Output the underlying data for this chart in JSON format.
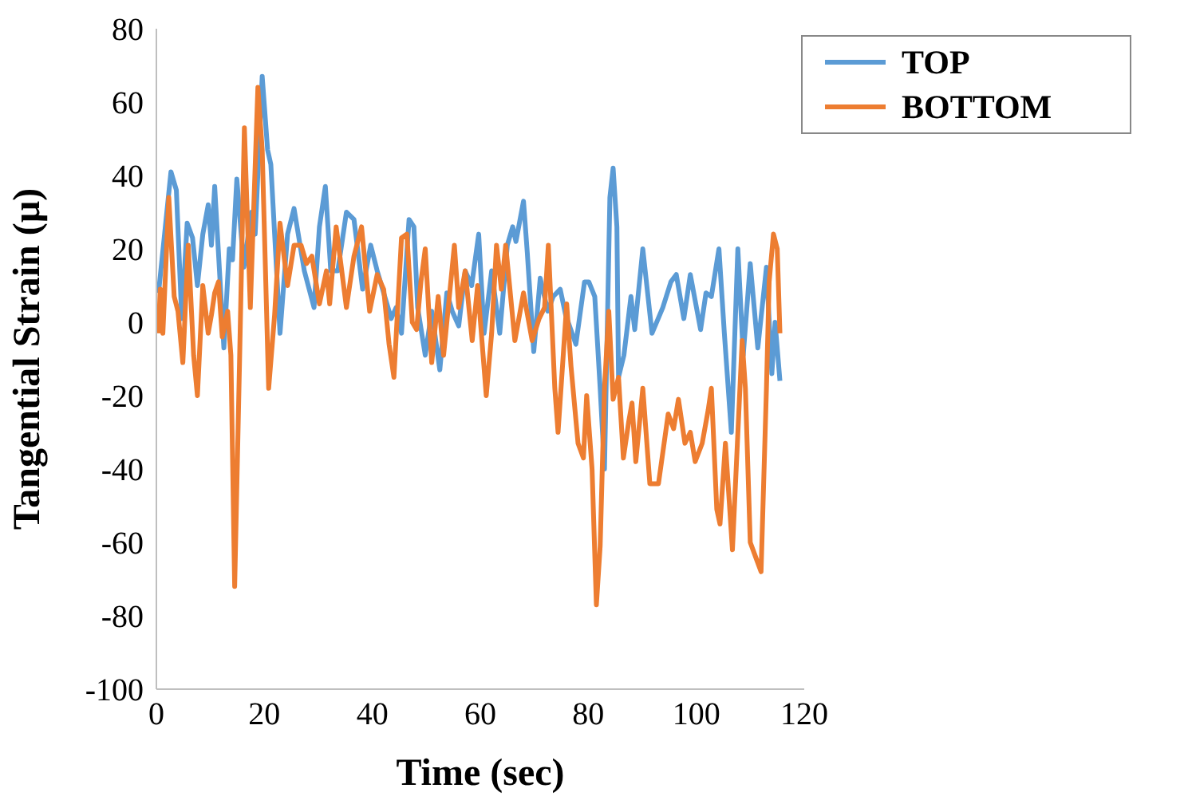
{
  "chart_data": {
    "type": "line",
    "xlabel": "Time (sec)",
    "ylabel": "Tangential Strain (µ)",
    "xlim": [
      0,
      120
    ],
    "xticks": [
      0,
      20,
      40,
      60,
      80,
      100,
      120
    ],
    "ylim": [
      -100,
      80
    ],
    "yticks": [
      -100,
      -80,
      -60,
      -40,
      -20,
      0,
      20,
      40,
      60,
      80
    ],
    "grid": false,
    "legend": "top right",
    "marker": "none",
    "line_style": "solid",
    "series": [
      {
        "name": "TOP",
        "color": "#5b9bd5",
        "x": [
          0.4,
          2.7,
          3.7,
          4.7,
          5.7,
          6.7,
          7.6,
          8.6,
          9.6,
          10.2,
          10.8,
          12.5,
          13.5,
          14.1,
          14.9,
          16.2,
          17.6,
          18.3,
          19.6,
          20.6,
          21.2,
          22.9,
          24.3,
          25.5,
          27.4,
          29.2,
          30.2,
          31.3,
          32.3,
          33.6,
          35.2,
          36.6,
          38.2,
          39.7,
          40.9,
          43.5,
          44.4,
          45.4,
          46.8,
          47.7,
          48.4,
          49.8,
          51.0,
          52.5,
          53.8,
          54.8,
          56.0,
          57.2,
          58.4,
          59.7,
          60.7,
          62.1,
          63.6,
          65.0,
          66.0,
          66.6,
          68.0,
          68.7,
          69.9,
          71.1,
          72.5,
          73.5,
          74.8,
          75.8,
          77.7,
          79.3,
          80.1,
          81.2,
          82.2,
          83.0,
          84.0,
          84.6,
          85.3,
          85.6,
          86.6,
          87.9,
          88.6,
          90.1,
          91.8,
          93.8,
          95.3,
          96.3,
          97.7,
          98.9,
          100.8,
          101.8,
          102.8,
          104.2,
          105.2,
          106.5,
          107.7,
          108.7,
          110.0,
          111.4,
          113.0,
          114.0,
          114.6,
          115.5
        ],
        "values": [
          8,
          41,
          36,
          1,
          27,
          23,
          10,
          24,
          32,
          21,
          37,
          -7,
          20,
          17,
          39,
          15,
          30,
          24,
          67,
          47,
          43,
          -3,
          24,
          31,
          14,
          4,
          26,
          37,
          14,
          14,
          30,
          28,
          9,
          21,
          14,
          1,
          4,
          -3,
          28,
          26,
          4,
          -9,
          3,
          -13,
          8,
          3,
          -1,
          14,
          10,
          24,
          -3,
          14,
          -3,
          21,
          26,
          22,
          33,
          19,
          -8,
          12,
          3,
          7,
          9,
          2,
          -6,
          11,
          11,
          7,
          -18,
          -40,
          34,
          42,
          26,
          -15,
          -9,
          7,
          -2,
          20,
          -3,
          4,
          11,
          13,
          1,
          13,
          -2,
          8,
          7,
          20,
          -3,
          -30,
          20,
          -9,
          16,
          -7,
          15,
          -14,
          0,
          -16
        ]
      },
      {
        "name": "BOTTOM",
        "color": "#ed7d31",
        "x": [
          0.4,
          0.7,
          1.2,
          2.3,
          3.3,
          4.0,
          4.9,
          5.9,
          6.9,
          7.6,
          8.6,
          9.6,
          10.2,
          10.8,
          11.5,
          12.2,
          13.2,
          13.8,
          14.5,
          15.4,
          16.3,
          17.4,
          18.8,
          19.6,
          20.8,
          21.9,
          22.9,
          24.3,
          25.5,
          26.8,
          27.8,
          28.8,
          30.2,
          31.5,
          32.1,
          33.3,
          35.2,
          36.6,
          38.0,
          39.5,
          40.9,
          42.1,
          43.1,
          44.0,
          45.4,
          46.4,
          47.4,
          48.2,
          49.0,
          49.8,
          51.0,
          52.2,
          53.2,
          55.2,
          56.0,
          57.2,
          58.5,
          59.5,
          61.1,
          62.1,
          63.0,
          63.9,
          64.7,
          66.4,
          68.0,
          69.6,
          70.9,
          71.9,
          72.6,
          73.8,
          74.4,
          76.0,
          76.8,
          78.1,
          79.1,
          79.7,
          80.7,
          81.5,
          82.2,
          83.0,
          83.8,
          84.6,
          85.6,
          86.5,
          87.5,
          88.1,
          88.8,
          90.1,
          91.4,
          93.0,
          94.8,
          95.8,
          96.7,
          97.9,
          98.9,
          99.8,
          101.1,
          102.2,
          102.8,
          103.8,
          104.4,
          105.4,
          106.7,
          108.5,
          109.1,
          110.0,
          111.0,
          112.0,
          113.0,
          113.5,
          114.3,
          115.0,
          115.5
        ],
        "values": [
          -3,
          9,
          -3,
          34,
          7,
          3,
          -11,
          21,
          -9,
          -20,
          10,
          -3,
          2,
          8,
          11,
          -4,
          3,
          -9,
          -72,
          -11,
          53,
          4,
          64,
          47,
          -18,
          2,
          27,
          10,
          21,
          21,
          16,
          18,
          5,
          14,
          5,
          26,
          4,
          18,
          26,
          3,
          13,
          9,
          -6,
          -15,
          23,
          24,
          0,
          -2,
          11,
          20,
          -11,
          7,
          -9,
          21,
          4,
          14,
          -5,
          10,
          -20,
          -3,
          21,
          9,
          21,
          -5,
          8,
          -5,
          1,
          4,
          21,
          -18,
          -30,
          5,
          -12,
          -33,
          -37,
          -20,
          -40,
          -77,
          -61,
          -18,
          3,
          -21,
          -15,
          -37,
          -27,
          -22,
          -38,
          -18,
          -44,
          -44,
          -25,
          -29,
          -21,
          -33,
          -30,
          -38,
          -33,
          -24,
          -18,
          -51,
          -55,
          -33,
          -62,
          -5,
          -18,
          -60,
          -64,
          -68,
          -18,
          11,
          24,
          20,
          -3
        ]
      }
    ]
  }
}
